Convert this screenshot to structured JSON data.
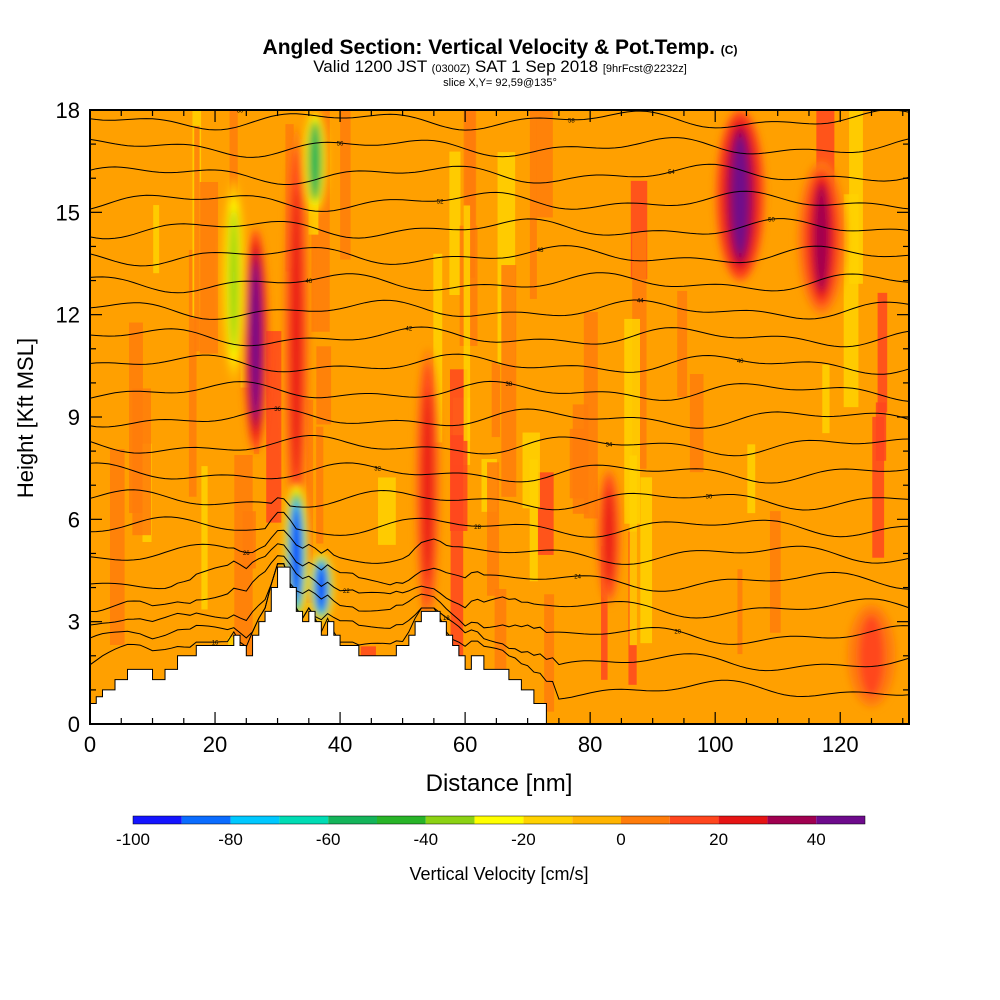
{
  "title": {
    "main": "Angled Section: Vertical Velocity & Pot.Temp.",
    "main_suffix": "(C)",
    "valid_prefix": "Valid 1200 JST",
    "valid_utc": "(0300Z)",
    "valid_date": "SAT 1 Sep 2018",
    "valid_fcst": "[9hrFcst@2232z]",
    "slice": "slice X,Y= 92,59@135°"
  },
  "chart_data": {
    "type": "heatmap",
    "xlabel": "Distance [nm]",
    "ylabel": "Height [Kft MSL]",
    "xlim": [
      0,
      131
    ],
    "ylim": [
      0,
      18
    ],
    "xticks": [
      0,
      20,
      40,
      60,
      80,
      100,
      120
    ],
    "yticks": [
      0,
      3,
      6,
      9,
      12,
      15,
      18
    ],
    "colorbar": {
      "label": "Vertical Velocity [cm/s]",
      "ticks": [
        -100,
        -80,
        -60,
        -40,
        -20,
        0,
        20,
        40
      ],
      "bins": [
        -100,
        -90,
        -80,
        -70,
        -60,
        -50,
        -40,
        -30,
        -20,
        -10,
        0,
        10,
        20,
        30,
        40,
        50
      ],
      "colors": [
        "#1414ff",
        "#0a6cff",
        "#00c8ff",
        "#00dcb4",
        "#14b45a",
        "#28b428",
        "#8cd214",
        "#ffff00",
        "#ffd200",
        "#ffb400",
        "#ff7c0a",
        "#ff461e",
        "#e61414",
        "#a00050",
        "#6e0a8c"
      ]
    },
    "background_bin_color": "#ffa000",
    "updraft_cores": [
      {
        "x": 26.5,
        "y_range": [
          8.0,
          14.5
        ],
        "peak_cm_s": 45
      },
      {
        "x": 33,
        "y_range": [
          5.5,
          17.5
        ],
        "peak_cm_s": 25
      },
      {
        "x": 54,
        "y_range": [
          3.0,
          11.0
        ],
        "peak_cm_s": 20
      },
      {
        "x": 83,
        "y_range": [
          3.5,
          7.5
        ],
        "peak_cm_s": 25
      },
      {
        "x": 104,
        "y_range": [
          13.0,
          18.0
        ],
        "peak_cm_s": 40
      },
      {
        "x": 117,
        "y_range": [
          12.0,
          16.5
        ],
        "peak_cm_s": 35
      },
      {
        "x": 125,
        "y_range": [
          0.5,
          3.5
        ],
        "peak_cm_s": 15
      }
    ],
    "downdraft_cores": [
      {
        "x": 33,
        "y_range": [
          3.0,
          7.0
        ],
        "peak_cm_s": -95
      },
      {
        "x": 37,
        "y_range": [
          3.0,
          5.0
        ],
        "peak_cm_s": -100
      },
      {
        "x": 36,
        "y_range": [
          15.0,
          18.0
        ],
        "peak_cm_s": -60
      },
      {
        "x": 23,
        "y_range": [
          10.0,
          16.0
        ],
        "peak_cm_s": -40
      }
    ],
    "terrain": {
      "x": [
        0,
        1,
        2,
        4,
        6,
        8,
        10,
        12,
        14,
        16,
        17,
        18,
        19,
        20,
        21,
        22,
        23,
        24,
        25,
        26,
        27,
        28,
        29,
        30,
        31,
        32,
        33,
        34,
        35,
        36,
        37,
        38,
        39,
        40,
        41,
        42,
        43,
        44,
        45,
        46,
        47,
        48,
        49,
        50,
        51,
        52,
        53,
        54,
        55,
        56,
        57,
        58,
        59,
        60,
        61,
        62,
        63,
        64,
        65,
        66,
        67,
        68,
        69,
        70,
        71,
        72,
        73
      ],
      "height_kft": [
        0.6,
        0.8,
        1.0,
        1.3,
        1.6,
        1.6,
        1.3,
        1.6,
        2.0,
        2.0,
        2.3,
        2.3,
        2.3,
        2.3,
        2.3,
        2.3,
        2.6,
        2.3,
        2.0,
        2.6,
        3.0,
        3.3,
        4.0,
        4.6,
        4.6,
        4.0,
        3.3,
        3.0,
        3.3,
        3.0,
        2.6,
        3.0,
        2.6,
        2.3,
        2.3,
        2.3,
        2.0,
        2.0,
        2.0,
        2.0,
        2.0,
        2.0,
        2.3,
        2.3,
        2.6,
        3.0,
        3.3,
        3.3,
        3.3,
        3.0,
        2.6,
        2.3,
        2.0,
        1.6,
        2.0,
        2.0,
        1.6,
        1.6,
        1.6,
        1.6,
        1.3,
        1.3,
        1.0,
        1.0,
        0.6,
        0.6,
        0.3
      ]
    },
    "isentropes_C": [
      16,
      18,
      20,
      22,
      24,
      26,
      28,
      30,
      32,
      34,
      36,
      38,
      40,
      42,
      44,
      46,
      48,
      50,
      52,
      54,
      56,
      58,
      60
    ]
  }
}
